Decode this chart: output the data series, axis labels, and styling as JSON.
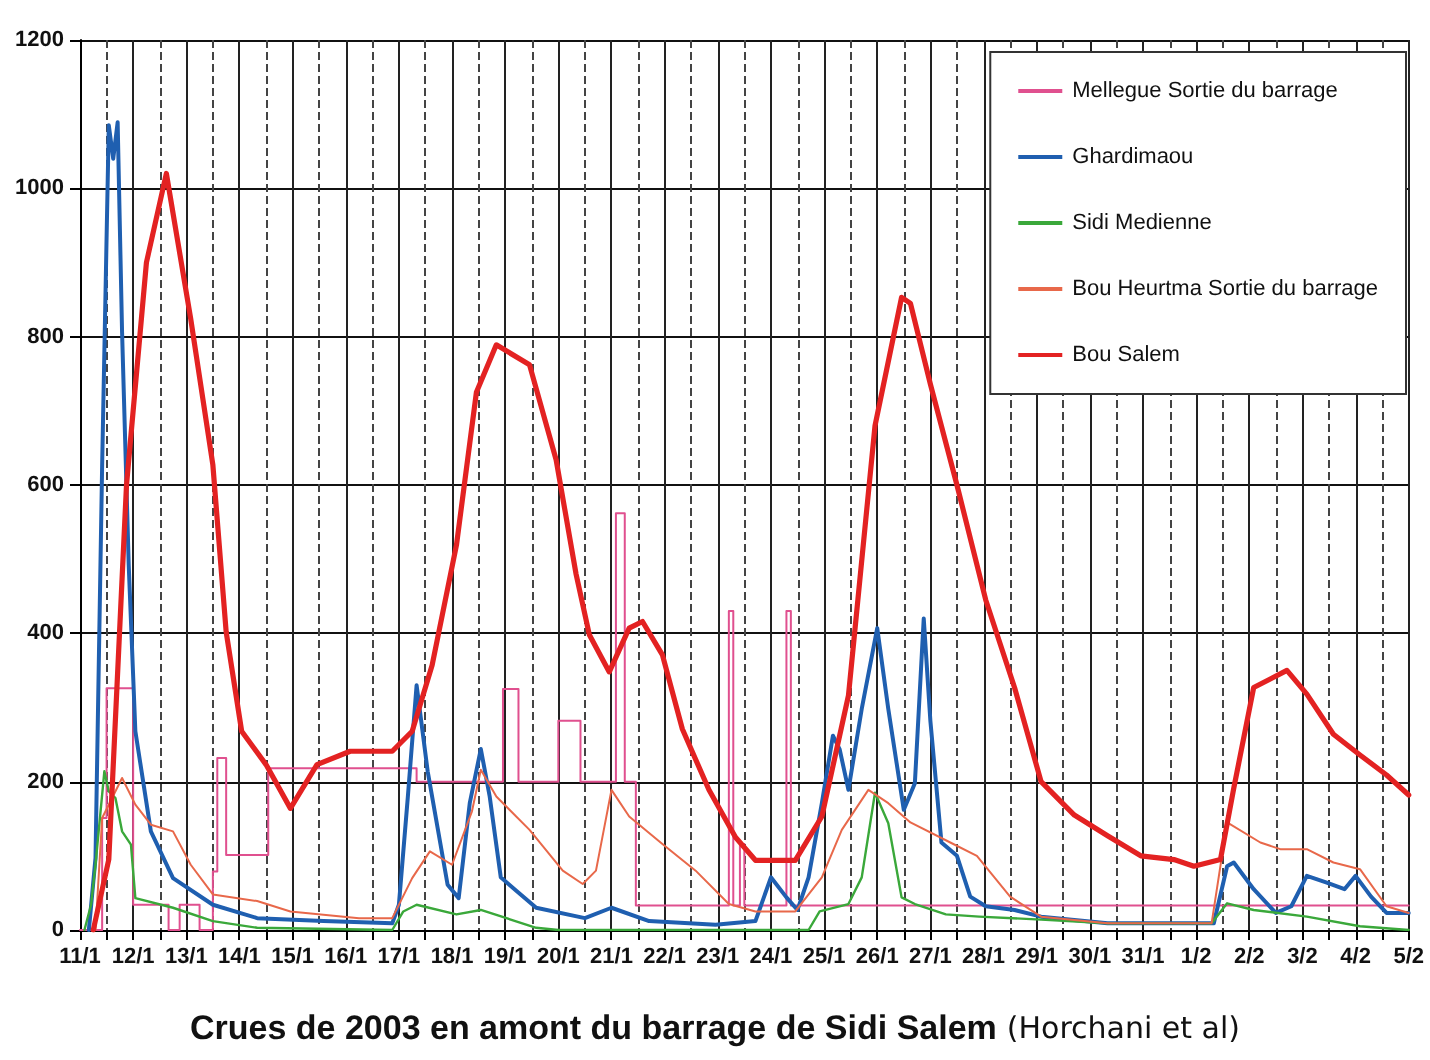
{
  "chart_data": {
    "type": "line",
    "title": "Crues de 2003 en amont du barrage de Sidi Salem",
    "annotations": [
      "(Horchani et al)"
    ],
    "xlim": [
      "2003-01-11",
      "2003-02-05"
    ],
    "xticks": [
      {
        "value": "2003-01-11",
        "label": "11/1"
      },
      {
        "value": "2003-01-12",
        "label": "12/1"
      },
      {
        "value": "2003-01-13",
        "label": "13/1"
      },
      {
        "value": "2003-01-14",
        "label": "14/1"
      },
      {
        "value": "2003-01-15",
        "label": "15/1"
      },
      {
        "value": "2003-01-16",
        "label": "16/1"
      },
      {
        "value": "2003-01-17",
        "label": "17/1"
      },
      {
        "value": "2003-01-18",
        "label": "18/1"
      },
      {
        "value": "2003-01-19",
        "label": "19/1"
      },
      {
        "value": "2003-01-20",
        "label": "20/1"
      },
      {
        "value": "2003-01-21",
        "label": "21/1"
      },
      {
        "value": "2003-01-22",
        "label": "22/1"
      },
      {
        "value": "2003-01-23",
        "label": "23/1"
      },
      {
        "value": "2003-01-24",
        "label": "24/1"
      },
      {
        "value": "2003-01-25",
        "label": "25/1"
      },
      {
        "value": "2003-01-26",
        "label": "26/1"
      },
      {
        "value": "2003-01-27",
        "label": "27/1"
      },
      {
        "value": "2003-01-28",
        "label": "28/1"
      },
      {
        "value": "2003-01-29",
        "label": "29/1"
      },
      {
        "value": "2003-01-30",
        "label": "30/1"
      },
      {
        "value": "2003-01-31",
        "label": "31/1"
      },
      {
        "value": "2003-02-01",
        "label": "1/2"
      },
      {
        "value": "2003-02-02",
        "label": "2/2"
      },
      {
        "value": "2003-02-03",
        "label": "3/2"
      },
      {
        "value": "2003-02-04",
        "label": "4/2"
      },
      {
        "value": "2003-02-05",
        "label": "5/2"
      },
      {
        "value": "2003-01-11T12:00",
        "label": null
      },
      {
        "value": "2003-01-12T12:00",
        "label": null
      },
      {
        "value": "2003-01-13T12:00",
        "label": null
      },
      {
        "value": "2003-01-14T12:00",
        "label": null
      },
      {
        "value": "2003-01-15T12:00",
        "label": null
      },
      {
        "value": "2003-01-16T12:00",
        "label": null
      },
      {
        "value": "2003-01-17T12:00",
        "label": null
      },
      {
        "value": "2003-01-18T12:00",
        "label": null
      },
      {
        "value": "2003-01-19T12:00",
        "label": null
      },
      {
        "value": "2003-01-20T12:00",
        "label": null
      },
      {
        "value": "2003-01-21T12:00",
        "label": null
      },
      {
        "value": "2003-01-22T12:00",
        "label": null
      },
      {
        "value": "2003-01-23T12:00",
        "label": null
      },
      {
        "value": "2003-01-24T12:00",
        "label": null
      },
      {
        "value": "2003-01-25T12:00",
        "label": null
      },
      {
        "value": "2003-01-26T12:00",
        "label": null
      },
      {
        "value": "2003-01-27T12:00",
        "label": null
      },
      {
        "value": "2003-01-28T12:00",
        "label": null
      },
      {
        "value": "2003-01-29T12:00",
        "label": null
      },
      {
        "value": "2003-01-30T12:00",
        "label": null
      },
      {
        "value": "2003-01-31T12:00",
        "label": null
      },
      {
        "value": "2003-02-01T12:00",
        "label": null
      },
      {
        "value": "2003-02-02T12:00",
        "label": null
      },
      {
        "value": "2003-02-03T12:00",
        "label": null
      },
      {
        "value": "2003-02-04T12:00",
        "label": null
      }
    ],
    "ylim": [
      0,
      1200
    ],
    "yticks": [
      0,
      200,
      400,
      600,
      800,
      1000,
      1200
    ],
    "grid": true,
    "legend": "top right",
    "marker": "none",
    "line_style": "solid",
    "series": [
      {
        "name": "Mellegue Sortie du barrage",
        "color": "#e0508f",
        "type": "step",
        "x": [
          "2003-01-11T00:00",
          "2003-01-11T10:00",
          "2003-01-11T12:00",
          "2003-01-12T00:00",
          "2003-01-12T16:00",
          "2003-01-12T21:00",
          "2003-01-13T06:00",
          "2003-01-13T12:00",
          "2003-01-13T14:00",
          "2003-01-13T18:00",
          "2003-01-14T13:00",
          "2003-01-17T08:00",
          "2003-01-18T23:00",
          "2003-01-19T06:00",
          "2003-01-20T00:00",
          "2003-01-20T10:00",
          "2003-01-21T02:00",
          "2003-01-21T06:00",
          "2003-01-21T11:00",
          "2003-01-23T05:00",
          "2003-01-23T07:00",
          "2003-01-23T10:00",
          "2003-01-23T12:00",
          "2003-01-24T07:00",
          "2003-01-24T09:00",
          "2003-02-05T00:00"
        ],
        "values": [
          0,
          151,
          326,
          34,
          0,
          34,
          0,
          79,
          232,
          101,
          218,
          200,
          325,
          200,
          282,
          200,
          562,
          200,
          33,
          430,
          33,
          116,
          33,
          430,
          33,
          33
        ]
      },
      {
        "name": "Ghardimaou",
        "color": "#1f5fb0",
        "x": [
          "2003-01-11T04:00",
          "2003-01-11T07:00",
          "2003-01-11T10:00",
          "2003-01-11T13:00",
          "2003-01-11T15:00",
          "2003-01-11T17:00",
          "2003-01-11T19:00",
          "2003-01-11T22:00",
          "2003-01-12T01:00",
          "2003-01-12T08:00",
          "2003-01-12T18:00",
          "2003-01-13T12:00",
          "2003-01-14T08:00",
          "2003-01-15T14:00",
          "2003-01-16T21:00",
          "2003-01-17T00:00",
          "2003-01-17T04:00",
          "2003-01-17T08:00",
          "2003-01-17T13:00",
          "2003-01-17T22:00",
          "2003-01-18T03:00",
          "2003-01-18T08:00",
          "2003-01-18T13:00",
          "2003-01-18T17:00",
          "2003-01-18T22:00",
          "2003-01-19T05:00",
          "2003-01-19T14:00",
          "2003-01-20T12:00",
          "2003-01-21T00:00",
          "2003-01-21T17:00",
          "2003-01-22T23:00",
          "2003-01-23T17:00",
          "2003-01-24T00:00",
          "2003-01-24T07:00",
          "2003-01-24T12:00",
          "2003-01-24T17:00",
          "2003-01-24T23:00",
          "2003-01-25T04:00",
          "2003-01-25T07:00",
          "2003-01-25T11:00",
          "2003-01-25T17:00",
          "2003-01-26T00:00",
          "2003-01-26T05:00",
          "2003-01-26T12:00",
          "2003-01-26T17:00",
          "2003-01-26T21:00",
          "2003-01-27T00:00",
          "2003-01-27T05:00",
          "2003-01-27T12:00",
          "2003-01-27T18:00",
          "2003-01-28T01:00",
          "2003-01-28T14:00",
          "2003-01-29T02:00",
          "2003-01-30T08:00",
          "2003-02-01T08:00",
          "2003-02-01T14:00",
          "2003-02-01T17:00",
          "2003-02-02T02:00",
          "2003-02-02T12:00",
          "2003-02-02T19:00",
          "2003-02-03T02:00",
          "2003-02-03T11:00",
          "2003-02-03T19:00",
          "2003-02-04T00:00",
          "2003-02-04T07:00",
          "2003-02-04T14:00",
          "2003-02-05T00:00"
        ],
        "values": [
          0,
          97,
          627,
          1085,
          1040,
          1089,
          806,
          492,
          268,
          133,
          70,
          34,
          16,
          12,
          9,
          34,
          178,
          330,
          214,
          61,
          43,
          171,
          244,
          180,
          71,
          53,
          30,
          16,
          30,
          12,
          7,
          12,
          71,
          44,
          27,
          71,
          171,
          262,
          244,
          189,
          298,
          407,
          298,
          162,
          198,
          420,
          282,
          118,
          100,
          45,
          32,
          27,
          18,
          9,
          9,
          86,
          91,
          55,
          23,
          32,
          73,
          64,
          55,
          73,
          45,
          23,
          23
        ]
      },
      {
        "name": "Sidi Medienne",
        "color": "#3aa83a",
        "x": [
          "2003-01-11T02:00",
          "2003-01-11T05:00",
          "2003-01-11T07:00",
          "2003-01-11T11:00",
          "2003-01-11T13:00",
          "2003-01-11T16:00",
          "2003-01-11T19:00",
          "2003-01-11T23:00",
          "2003-01-12T01:00",
          "2003-01-12T18:00",
          "2003-01-13T12:00",
          "2003-01-14T08:00",
          "2003-01-16T21:00",
          "2003-01-17T02:00",
          "2003-01-17T08:00",
          "2003-01-18T02:00",
          "2003-01-18T13:00",
          "2003-01-19T14:00",
          "2003-01-20T00:00",
          "2003-01-24T17:00",
          "2003-01-24T22:00",
          "2003-01-25T11:00",
          "2003-01-25T17:00",
          "2003-01-25T23:00",
          "2003-01-26T05:00",
          "2003-01-26T11:00",
          "2003-01-26T17:00",
          "2003-01-27T07:00",
          "2003-01-27T22:00",
          "2003-01-29T02:00",
          "2003-01-30T08:00",
          "2003-02-01T07:00",
          "2003-02-01T14:00",
          "2003-02-02T02:00",
          "2003-02-03T02:00",
          "2003-02-04T02:00",
          "2003-02-05T00:00"
        ],
        "values": [
          0,
          34,
          88,
          214,
          187,
          178,
          133,
          115,
          43,
          30,
          12,
          3,
          0,
          25,
          34,
          21,
          27,
          3,
          0,
          0,
          25,
          35,
          71,
          185,
          144,
          44,
          35,
          21,
          18,
          14,
          9,
          9,
          36,
          27,
          18,
          5,
          0
        ]
      },
      {
        "name": "Bou Heurtma Sortie du barrage",
        "color": "#e8684a",
        "x": [
          "2003-01-11T07:00",
          "2003-01-11T10:00",
          "2003-01-11T19:00",
          "2003-01-12T01:00",
          "2003-01-12T08:00",
          "2003-01-12T18:00",
          "2003-01-13T02:00",
          "2003-01-13T12:00",
          "2003-01-14T08:00",
          "2003-01-14T23:00",
          "2003-01-16T06:00",
          "2003-01-16T21:00",
          "2003-01-17T06:00",
          "2003-01-17T14:00",
          "2003-01-18T00:00",
          "2003-01-18T09:00",
          "2003-01-18T13:00",
          "2003-01-18T20:00",
          "2003-01-19T11:00",
          "2003-01-20T02:00",
          "2003-01-20T11:00",
          "2003-01-20T17:00",
          "2003-01-21T00:00",
          "2003-01-21T08:00",
          "2003-01-21T23:00",
          "2003-01-22T14:00",
          "2003-01-23T05:00",
          "2003-01-23T17:00",
          "2003-01-24T11:00",
          "2003-01-24T23:00",
          "2003-01-25T08:00",
          "2003-01-25T20:00",
          "2003-01-26T05:00",
          "2003-01-26T15:00",
          "2003-01-27T09:00",
          "2003-01-27T21:00",
          "2003-01-28T12:00",
          "2003-01-29T02:00",
          "2003-01-30T08:00",
          "2003-02-01T07:00",
          "2003-02-01T14:00",
          "2003-02-02T05:00",
          "2003-02-02T14:00",
          "2003-02-03T02:00",
          "2003-02-03T14:00",
          "2003-02-04T02:00",
          "2003-02-04T14:00",
          "2003-02-05T00:00"
        ],
        "values": [
          0,
          151,
          205,
          169,
          142,
          133,
          88,
          48,
          39,
          25,
          16,
          16,
          70,
          106,
          88,
          160,
          216,
          180,
          135,
          80,
          62,
          80,
          189,
          153,
          116,
          80,
          35,
          25,
          25,
          71,
          135,
          189,
          171,
          145,
          118,
          100,
          45,
          18,
          9,
          9,
          145,
          118,
          109,
          109,
          91,
          82,
          32,
          23
        ]
      },
      {
        "name": "Bou Salem",
        "color": "#e32222",
        "x": [
          "2003-01-11T06:00",
          "2003-01-11T13:00",
          "2003-01-11T21:00",
          "2003-01-12T06:00",
          "2003-01-12T15:00",
          "2003-01-13T02:00",
          "2003-01-13T12:00",
          "2003-01-13T18:00",
          "2003-01-14T01:00",
          "2003-01-14T12:00",
          "2003-01-14T23:00",
          "2003-01-15T11:00",
          "2003-01-16T02:00",
          "2003-01-16T21:00",
          "2003-01-17T06:00",
          "2003-01-17T15:00",
          "2003-01-18T02:00",
          "2003-01-18T11:00",
          "2003-01-18T20:00",
          "2003-01-19T11:00",
          "2003-01-19T23:00",
          "2003-01-20T08:00",
          "2003-01-20T14:00",
          "2003-01-20T23:00",
          "2003-01-21T08:00",
          "2003-01-21T14:00",
          "2003-01-21T23:00",
          "2003-01-22T08:00",
          "2003-01-22T20:00",
          "2003-01-23T08:00",
          "2003-01-23T17:00",
          "2003-01-24T11:00",
          "2003-01-24T23:00",
          "2003-01-25T11:00",
          "2003-01-25T23:00",
          "2003-01-26T11:00",
          "2003-01-26T15:00",
          "2003-01-27T00:00",
          "2003-01-27T12:00",
          "2003-01-28T01:00",
          "2003-01-28T14:00",
          "2003-01-29T02:00",
          "2003-01-29T17:00",
          "2003-01-30T08:00",
          "2003-01-30T23:00",
          "2003-01-31T14:00",
          "2003-01-31T23:00",
          "2003-02-01T11:00",
          "2003-02-01T17:00",
          "2003-02-02T02:00",
          "2003-02-02T17:00",
          "2003-02-03T02:00",
          "2003-02-03T14:00",
          "2003-02-04T02:00",
          "2003-02-04T14:00",
          "2003-02-05T00:00"
        ],
        "values": [
          0,
          95,
          600,
          900,
          1020,
          824,
          627,
          402,
          268,
          223,
          164,
          223,
          241,
          241,
          268,
          357,
          519,
          725,
          789,
          762,
          634,
          480,
          398,
          348,
          407,
          416,
          371,
          271,
          189,
          125,
          94,
          94,
          153,
          316,
          680,
          853,
          845,
          736,
          600,
          445,
          327,
          200,
          155,
          127,
          100,
          95,
          86,
          95,
          191,
          327,
          350,
          318,
          264,
          236,
          209,
          182
        ]
      }
    ]
  }
}
